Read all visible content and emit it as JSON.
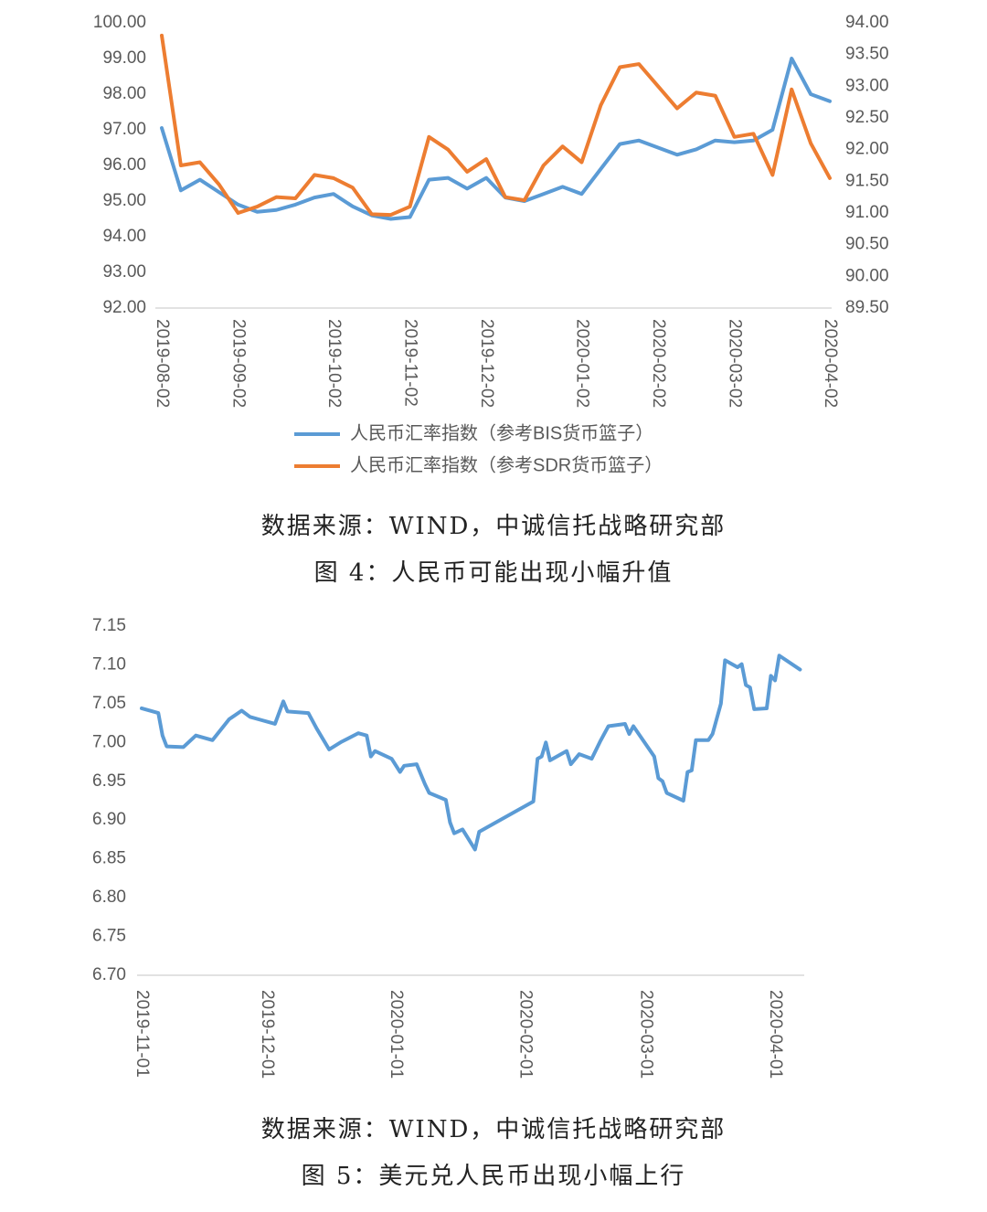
{
  "chart_data": [
    {
      "type": "line",
      "categories": [
        "2019-08-02",
        null,
        null,
        null,
        "2019-09-02",
        null,
        null,
        null,
        null,
        "2019-10-02",
        null,
        null,
        null,
        "2019-11-02",
        null,
        null,
        null,
        "2019-12-02",
        null,
        null,
        null,
        null,
        "2020-01-02",
        null,
        null,
        null,
        "2020-02-02",
        null,
        null,
        null,
        "2020-03-02",
        null,
        null,
        null,
        null,
        "2020-04-02"
      ],
      "series": [
        {
          "name": "人民币汇率指数（参考BIS货币篮子）",
          "color": "#5b9bd5",
          "axis": "y",
          "values": [
            97.05,
            95.3,
            95.6,
            95.25,
            94.9,
            94.7,
            94.75,
            94.9,
            95.1,
            95.2,
            94.85,
            94.6,
            94.5,
            94.55,
            95.6,
            95.65,
            95.35,
            95.65,
            95.1,
            95.0,
            95.2,
            95.4,
            95.2,
            95.9,
            96.6,
            96.7,
            96.5,
            96.3,
            96.45,
            96.7,
            96.65,
            96.7,
            97.0,
            99.0,
            98.0,
            97.8
          ]
        },
        {
          "name": "人民币汇率指数（参考SDR货币篮子）",
          "color": "#ed7d31",
          "axis": "y2",
          "values": [
            93.8,
            91.75,
            91.8,
            91.45,
            91.0,
            91.1,
            91.25,
            91.23,
            91.6,
            91.55,
            91.4,
            90.98,
            90.97,
            91.1,
            92.2,
            92.0,
            91.65,
            91.85,
            91.25,
            91.2,
            91.75,
            92.05,
            91.8,
            92.7,
            93.3,
            93.35,
            93.0,
            92.65,
            92.9,
            92.85,
            92.2,
            92.25,
            91.6,
            92.95,
            92.1,
            91.55
          ]
        }
      ],
      "ylim": [
        92,
        100
      ],
      "yticks": [
        {
          "value": 92,
          "label": "92.00"
        },
        {
          "value": 93,
          "label": "93.00"
        },
        {
          "value": 94,
          "label": "94.00"
        },
        {
          "value": 95,
          "label": "95.00"
        },
        {
          "value": 96,
          "label": "96.00"
        },
        {
          "value": 97,
          "label": "97.00"
        },
        {
          "value": 98,
          "label": "98.00"
        },
        {
          "value": 99,
          "label": "99.00"
        },
        {
          "value": 100,
          "label": "100.00"
        }
      ],
      "y2lim": [
        89.5,
        94
      ],
      "y2ticks": [
        {
          "value": 89.5,
          "label": "89.50"
        },
        {
          "value": 90,
          "label": "90.00"
        },
        {
          "value": 90.5,
          "label": "90.50"
        },
        {
          "value": 91,
          "label": "91.00"
        },
        {
          "value": 91.5,
          "label": "91.50"
        },
        {
          "value": 92,
          "label": "92.00"
        },
        {
          "value": 92.5,
          "label": "92.50"
        },
        {
          "value": 93,
          "label": "93.00"
        },
        {
          "value": 93.5,
          "label": "93.50"
        },
        {
          "value": 94,
          "label": "94.00"
        }
      ],
      "grid": false,
      "legend": "bottom",
      "source": "数据来源：WIND，中诚信托战略研究部",
      "caption": "图 4：人民币可能出现小幅升值"
    },
    {
      "type": "line",
      "x": [
        "2019-11-01",
        "2019-11-05",
        "2019-11-06",
        "2019-11-07",
        "2019-11-11",
        "2019-11-14",
        "2019-11-18",
        "2019-11-22",
        "2019-11-25",
        "2019-11-27",
        "2019-11-29",
        "2019-12-03",
        "2019-12-05",
        "2019-12-06",
        "2019-12-11",
        "2019-12-13",
        "2019-12-16",
        "2019-12-19",
        "2019-12-23",
        "2019-12-25",
        "2019-12-26",
        "2019-12-27",
        "2019-12-31",
        "2020-01-02",
        "2020-01-03",
        "2020-01-06",
        "2020-01-08",
        "2020-01-09",
        "2020-01-13",
        "2020-01-14",
        "2020-01-15",
        "2020-01-17",
        "2020-01-20",
        "2020-01-21",
        "2020-02-03",
        "2020-02-04",
        "2020-02-05",
        "2020-02-06",
        "2020-02-07",
        "2020-02-11",
        "2020-02-12",
        "2020-02-14",
        "2020-02-17",
        "2020-02-19",
        "2020-02-21",
        "2020-02-25",
        "2020-02-26",
        "2020-02-27",
        "2020-03-03",
        "2020-03-04",
        "2020-03-05",
        "2020-03-06",
        "2020-03-10",
        "2020-03-11",
        "2020-03-12",
        "2020-03-13",
        "2020-03-16",
        "2020-03-17",
        "2020-03-19",
        "2020-03-20",
        "2020-03-23",
        "2020-03-24",
        "2020-03-25",
        "2020-03-26",
        "2020-03-27",
        "2020-03-30",
        "2020-03-31",
        "2020-04-01",
        "2020-04-02",
        "2020-04-07"
      ],
      "series": [
        {
          "color": "#5b9bd5",
          "values": [
            7.044,
            7.038,
            7.009,
            6.995,
            6.994,
            7.009,
            7.003,
            7.03,
            7.041,
            7.033,
            7.03,
            7.024,
            7.053,
            7.04,
            7.038,
            7.018,
            6.991,
            7.001,
            7.012,
            7.009,
            6.982,
            6.989,
            6.979,
            6.962,
            6.97,
            6.972,
            6.946,
            6.935,
            6.926,
            6.897,
            6.883,
            6.888,
            6.862,
            6.885,
            6.924,
            6.979,
            6.982,
            7.0,
            6.977,
            6.989,
            6.972,
            6.985,
            6.979,
            7.001,
            7.021,
            7.024,
            7.011,
            7.021,
            6.982,
            6.954,
            6.95,
            6.935,
            6.925,
            6.962,
            6.964,
            7.003,
            7.003,
            7.011,
            7.05,
            7.106,
            7.097,
            7.101,
            7.074,
            7.071,
            7.043,
            7.044,
            7.086,
            7.08,
            7.112,
            7.094
          ]
        }
      ],
      "xlim": [
        "2019-11-01",
        "2020-04-08"
      ],
      "xticks": [
        "2019-11-01",
        "2019-12-01",
        "2020-01-01",
        "2020-02-01",
        "2020-03-01",
        "2020-04-01"
      ],
      "ylim": [
        6.7,
        7.15
      ],
      "yticks": [
        {
          "value": 6.7,
          "label": "6.70"
        },
        6.75,
        {
          "value": 6.8,
          "label": "6.80"
        },
        6.85,
        {
          "value": 6.9,
          "label": "6.90"
        },
        6.95,
        {
          "value": 7,
          "label": "7.00"
        },
        7.05,
        {
          "value": 7.1,
          "label": "7.10"
        },
        7.15
      ],
      "grid": false,
      "source": "数据来源：WIND，中诚信托战略研究部",
      "caption": "图 5：美元兑人民币出现小幅上行"
    }
  ]
}
